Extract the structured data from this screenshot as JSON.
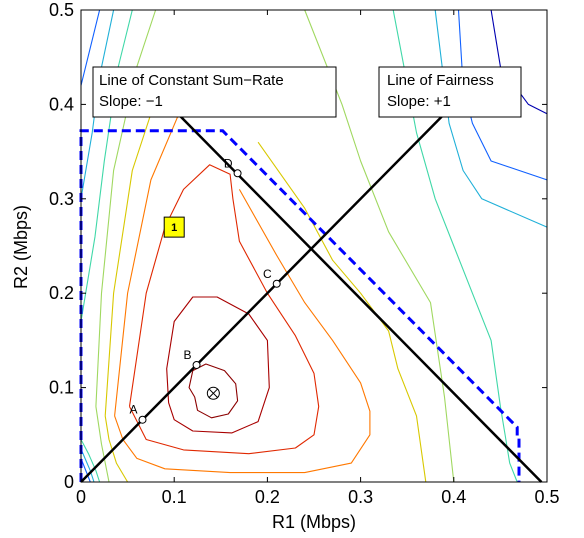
{
  "chart_data": {
    "type": "contour",
    "xlabel": "R1 (Mbps)",
    "ylabel": "R2 (Mbps)",
    "xlim": [
      0,
      0.5
    ],
    "ylim": [
      0,
      0.5
    ],
    "xticks": [
      0,
      0.1,
      0.2,
      0.3,
      0.4,
      0.5
    ],
    "yticks": [
      0,
      0.1,
      0.2,
      0.3,
      0.4,
      0.5
    ],
    "xtick_labels": [
      "0",
      "0.1",
      "0.2",
      "0.3",
      "0.4",
      "0.5"
    ],
    "ytick_labels": [
      "0",
      "0.1",
      "0.2",
      "0.3",
      "0.4",
      "0.5"
    ],
    "grid": false,
    "lines": [
      {
        "label": "Line of Constant Sum−Rate",
        "slope_text": "Slope: −1",
        "x": [
          0.105,
          0.494
        ],
        "y": [
          0.389,
          0
        ]
      },
      {
        "label": "Line of Fairness",
        "slope_text": "Slope: +1",
        "x": [
          0,
          0.4
        ],
        "y": [
          0,
          0.4
        ]
      }
    ],
    "region_boundary": {
      "style": "dashed",
      "color": "#0000ff",
      "x": [
        0.0,
        0.0,
        0.152,
        0.468,
        0.468,
        0.47,
        0.47
      ],
      "y": [
        0.0,
        0.372,
        0.372,
        0.058,
        0.046,
        0.046,
        0.0
      ]
    },
    "points": [
      {
        "label": "A",
        "x": 0.066,
        "y": 0.066
      },
      {
        "label": "B",
        "x": 0.124,
        "y": 0.124
      },
      {
        "label": "C",
        "x": 0.21,
        "y": 0.21
      },
      {
        "label": "D",
        "x": 0.168,
        "y": 0.327
      }
    ],
    "optimum": {
      "x": 0.142,
      "y": 0.094,
      "symbol": "⊗"
    },
    "badge": {
      "label": "1",
      "x": 0.1,
      "y": 0.27,
      "color": "#ffff00"
    },
    "contours": [
      {
        "color": "#8b0000",
        "x": [
          0.122,
          0.116,
          0.12,
          0.134,
          0.154,
          0.166,
          0.168,
          0.158,
          0.14,
          0.125,
          0.122
        ],
        "y": [
          0.09,
          0.1,
          0.118,
          0.125,
          0.118,
          0.104,
          0.086,
          0.072,
          0.068,
          0.076,
          0.09
        ]
      },
      {
        "color": "#a80000",
        "x": [
          0.094,
          0.092,
          0.1,
          0.12,
          0.146,
          0.18,
          0.2,
          0.202,
          0.19,
          0.162,
          0.12,
          0.1,
          0.094
        ],
        "y": [
          0.084,
          0.12,
          0.17,
          0.196,
          0.196,
          0.178,
          0.15,
          0.1,
          0.064,
          0.052,
          0.054,
          0.066,
          0.084
        ]
      },
      {
        "color": "#e02800",
        "x": [
          0.052,
          0.07,
          0.09,
          0.11,
          0.138,
          0.16,
          0.163,
          0.17,
          0.2,
          0.23,
          0.25,
          0.255,
          0.25,
          0.23,
          0.18,
          0.11,
          0.07,
          0.052
        ],
        "y": [
          0.08,
          0.2,
          0.27,
          0.31,
          0.336,
          0.326,
          0.3,
          0.255,
          0.2,
          0.155,
          0.115,
          0.08,
          0.05,
          0.036,
          0.03,
          0.034,
          0.045,
          0.08
        ]
      },
      {
        "color": "#ff7800",
        "x": [
          0.036,
          0.05,
          0.075,
          0.105
        ],
        "y": [
          0.07,
          0.2,
          0.32,
          0.39
        ]
      },
      {
        "color": "#ff7800",
        "x": [
          0.17,
          0.21,
          0.24,
          0.27,
          0.3,
          0.31,
          0.31,
          0.29,
          0.24,
          0.16,
          0.09,
          0.06,
          0.045,
          0.036
        ],
        "y": [
          0.31,
          0.24,
          0.19,
          0.15,
          0.105,
          0.075,
          0.05,
          0.02,
          0.01,
          0.01,
          0.014,
          0.025,
          0.045,
          0.07
        ]
      },
      {
        "color": "#d8c800",
        "x": [
          0.026,
          0.035,
          0.055,
          0.085
        ],
        "y": [
          0.07,
          0.2,
          0.33,
          0.42
        ]
      },
      {
        "color": "#d8c800",
        "x": [
          0.19,
          0.24,
          0.27,
          0.3,
          0.33,
          0.34,
          0.36,
          0.37
        ],
        "y": [
          0.36,
          0.29,
          0.235,
          0.2,
          0.16,
          0.12,
          0.07,
          0.0
        ]
      },
      {
        "color": "#d8c800",
        "x": [
          0.026,
          0.03,
          0.038,
          0.05
        ],
        "y": [
          0.07,
          0.045,
          0.02,
          0.0
        ]
      },
      {
        "color": "#a0d860",
        "x": [
          0.016,
          0.022,
          0.035,
          0.06,
          0.08
        ],
        "y": [
          0.08,
          0.2,
          0.33,
          0.44,
          0.5
        ]
      },
      {
        "color": "#a0d860",
        "x": [
          0.24,
          0.28,
          0.3,
          0.33,
          0.375,
          0.39,
          0.4
        ],
        "y": [
          0.5,
          0.4,
          0.34,
          0.265,
          0.19,
          0.09,
          0.0
        ]
      },
      {
        "color": "#a0d860",
        "x": [
          0.016,
          0.022,
          0.03
        ],
        "y": [
          0.08,
          0.04,
          0.0
        ]
      },
      {
        "color": "#40d8a8",
        "x": [
          0.335,
          0.36,
          0.38,
          0.4,
          0.42,
          0.44,
          0.45,
          0.455,
          0.46,
          0.468
        ],
        "y": [
          0.5,
          0.37,
          0.3,
          0.25,
          0.2,
          0.15,
          0.08,
          0.05,
          0.02,
          0.0
        ]
      },
      {
        "color": "#20b0d8",
        "x": [
          0.38,
          0.395,
          0.41,
          0.43,
          0.5
        ],
        "y": [
          0.5,
          0.38,
          0.33,
          0.3,
          0.27
        ]
      },
      {
        "color": "#1060ff",
        "x": [
          0.405,
          0.41,
          0.42,
          0.44,
          0.5
        ],
        "y": [
          0.5,
          0.42,
          0.38,
          0.34,
          0.32
        ]
      },
      {
        "color": "#0000b0",
        "x": [
          0.44,
          0.45,
          0.48,
          0.5
        ],
        "y": [
          0.5,
          0.44,
          0.4,
          0.39
        ]
      },
      {
        "color": "#40d8a8",
        "x": [
          0.0,
          0.015,
          0.025,
          0.04,
          0.055
        ],
        "y": [
          0.17,
          0.26,
          0.34,
          0.44,
          0.5
        ]
      },
      {
        "color": "#20b0d8",
        "x": [
          0.0,
          0.012,
          0.02,
          0.035
        ],
        "y": [
          0.3,
          0.37,
          0.43,
          0.5
        ]
      },
      {
        "color": "#1060ff",
        "x": [
          0.0,
          0.01,
          0.02
        ],
        "y": [
          0.42,
          0.46,
          0.5
        ]
      },
      {
        "color": "#40d8a8",
        "x": [
          0.0,
          0.008,
          0.016,
          0.02
        ],
        "y": [
          0.045,
          0.03,
          0.012,
          0.0
        ]
      },
      {
        "color": "#20b0d8",
        "x": [
          0.0,
          0.01,
          0.014
        ],
        "y": [
          0.035,
          0.012,
          0.0
        ]
      },
      {
        "color": "#1060ff",
        "x": [
          0.0,
          0.006,
          0.01
        ],
        "y": [
          0.025,
          0.01,
          0.0
        ]
      }
    ]
  }
}
